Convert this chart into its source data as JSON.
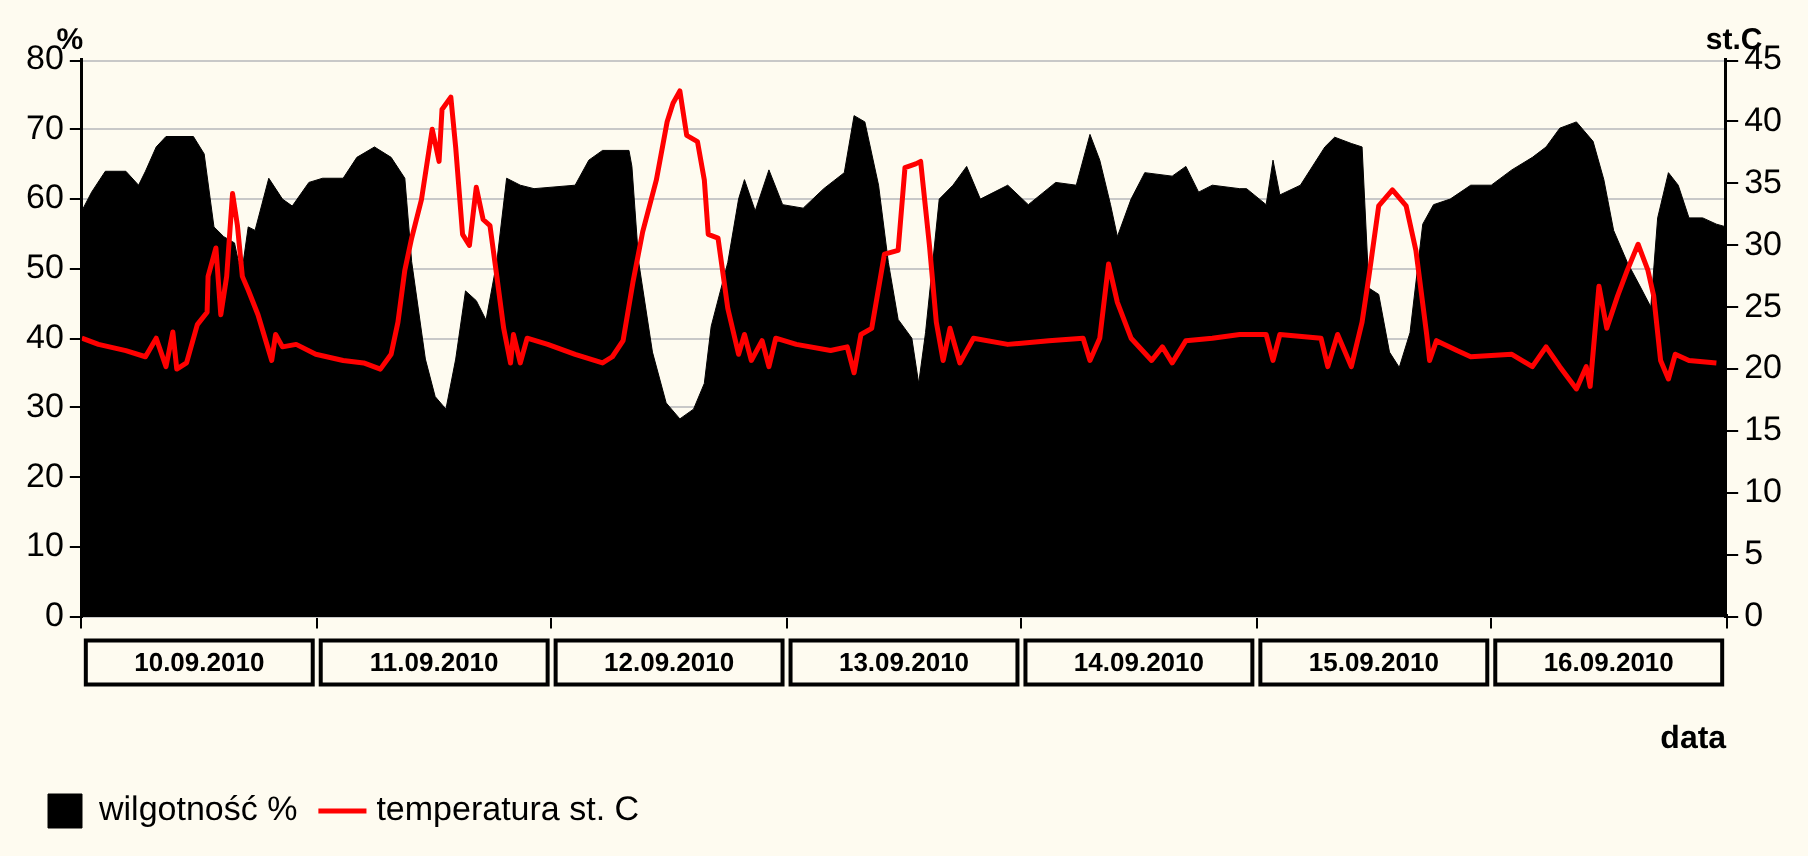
{
  "chart_data": {
    "type": "area",
    "xlabel": "data",
    "ylabel": "%",
    "y2label": "st.C",
    "xlim": [
      "2010-09-10",
      "2010-09-17"
    ],
    "xticks": [
      {
        "value": "2010-09-10",
        "label": null
      },
      {
        "value": "2010-09-10T12:00",
        "label": "10.09.2010"
      },
      {
        "value": "2010-09-11",
        "label": null
      },
      {
        "value": "2010-09-11T12:00",
        "label": "11.09.2010"
      },
      {
        "value": "2010-09-12",
        "label": null
      },
      {
        "value": "2010-09-12T12:00",
        "label": "12.09.2010"
      },
      {
        "value": "2010-09-13",
        "label": null
      },
      {
        "value": "2010-09-13T12:00",
        "label": "13.09.2010"
      },
      {
        "value": "2010-09-14",
        "label": null
      },
      {
        "value": "2010-09-14T12:00",
        "label": "14.09.2010"
      },
      {
        "value": "2010-09-15",
        "label": null
      },
      {
        "value": "2010-09-15T12:00",
        "label": "15.09.2010"
      },
      {
        "value": "2010-09-16",
        "label": null
      },
      {
        "value": "2010-09-16T12:00",
        "label": "16.09.2010"
      },
      {
        "value": "2010-09-17",
        "label": null
      }
    ],
    "ylim": [
      0,
      80
    ],
    "yticks": [
      0,
      10,
      20,
      30,
      40,
      50,
      60,
      70,
      80
    ],
    "y2lim": [
      0,
      45
    ],
    "y2ticks": [
      0,
      5,
      10,
      15,
      20,
      25,
      30,
      35,
      40,
      45
    ],
    "grid": "y",
    "legend": "bottom left",
    "series": [
      {
        "name": "wilgotność %",
        "color": "#000000",
        "x": [
          "2010-09-10T00:00",
          "2010-09-10T01:00",
          "2010-09-10T02:24",
          "2010-09-10T04:30",
          "2010-09-10T05:48",
          "2010-09-10T06:30",
          "2010-09-10T07:36",
          "2010-09-10T08:36",
          "2010-09-10T11:24",
          "2010-09-10T12:30",
          "2010-09-10T13:30",
          "2010-09-10T14:30",
          "2010-09-10T15:36",
          "2010-09-10T16:18",
          "2010-09-10T17:00",
          "2010-09-10T17:42",
          "2010-09-10T19:06",
          "2010-09-10T20:30",
          "2010-09-10T21:30",
          "2010-09-10T23:12",
          "2010-09-11T00:36",
          "2010-09-11T02:42",
          "2010-09-11T04:06",
          "2010-09-11T05:54",
          "2010-09-11T07:36",
          "2010-09-11T09:00",
          "2010-09-11T09:42",
          "2010-09-11T11:06",
          "2010-09-11T12:06",
          "2010-09-11T13:12",
          "2010-09-11T14:12",
          "2010-09-11T15:12",
          "2010-09-11T16:18",
          "2010-09-11T17:18",
          "2010-09-11T18:24",
          "2010-09-11T19:24",
          "2010-09-11T20:48",
          "2010-09-11T22:12",
          "2010-09-12T02:24",
          "2010-09-12T03:48",
          "2010-09-12T05:12",
          "2010-09-12T07:54",
          "2010-09-12T08:12",
          "2010-09-12T08:54",
          "2010-09-12T10:18",
          "2010-09-12T11:42",
          "2010-09-12T13:06",
          "2010-09-12T14:30",
          "2010-09-12T15:36",
          "2010-09-12T16:18",
          "2010-09-12T18:00",
          "2010-09-12T19:06",
          "2010-09-12T19:42",
          "2010-09-12T20:48",
          "2010-09-12T22:12",
          "2010-09-12T23:36",
          "2010-09-13T01:42",
          "2010-09-13T03:48",
          "2010-09-13T05:54",
          "2010-09-13T06:54",
          "2010-09-13T08:00",
          "2010-09-13T09:24",
          "2010-09-13T10:24",
          "2010-09-13T11:24",
          "2010-09-13T12:48",
          "2010-09-13T13:30",
          "2010-09-13T14:12",
          "2010-09-13T15:36",
          "2010-09-13T17:00",
          "2010-09-13T18:24",
          "2010-09-13T19:48",
          "2010-09-13T22:36",
          "2010-09-14T00:42",
          "2010-09-14T03:30",
          "2010-09-14T05:36",
          "2010-09-14T07:00",
          "2010-09-14T08:00",
          "2010-09-14T09:06",
          "2010-09-14T09:48",
          "2010-09-14T11:12",
          "2010-09-14T12:36",
          "2010-09-14T15:24",
          "2010-09-14T16:48",
          "2010-09-14T18:06",
          "2010-09-14T19:30",
          "2010-09-14T22:18",
          "2010-09-14T23:00",
          "2010-09-15T01:00",
          "2010-09-15T01:42",
          "2010-09-15T02:24",
          "2010-09-15T04:30",
          "2010-09-15T07:00",
          "2010-09-15T08:00",
          "2010-09-15T09:42",
          "2010-09-15T10:48",
          "2010-09-15T11:30",
          "2010-09-15T12:30",
          "2010-09-15T13:36",
          "2010-09-15T14:36",
          "2010-09-15T15:42",
          "2010-09-15T17:00",
          "2010-09-15T18:06",
          "2010-09-15T19:48",
          "2010-09-15T21:54",
          "2010-09-16T00:00",
          "2010-09-16T02:06",
          "2010-09-16T04:12",
          "2010-09-16T05:36",
          "2010-09-16T07:00",
          "2010-09-16T08:42",
          "2010-09-16T10:24",
          "2010-09-16T11:30",
          "2010-09-16T12:30",
          "2010-09-16T13:54",
          "2010-09-16T15:18",
          "2010-09-16T16:18",
          "2010-09-16T17:00",
          "2010-09-16T18:06",
          "2010-09-16T19:06",
          "2010-09-16T20:12",
          "2010-09-16T21:36",
          "2010-09-16T23:00",
          "2010-09-17T00:00"
        ],
        "values": [
          58.3,
          61,
          64,
          64,
          62,
          64,
          67.5,
          69,
          69,
          66.5,
          56,
          54.6,
          53.7,
          49,
          56,
          55.5,
          63,
          60,
          59,
          62.4,
          63,
          63,
          66,
          67.5,
          66,
          63,
          51,
          37,
          31.6,
          29.8,
          37,
          46.8,
          45.4,
          42.6,
          51,
          63,
          62,
          61.5,
          62,
          65.6,
          67,
          67,
          64.7,
          50.9,
          38,
          30.7,
          28.4,
          29.8,
          33.5,
          41.7,
          50.9,
          60,
          62.8,
          58.3,
          64.2,
          59.2,
          58.7,
          61.5,
          63.8,
          72,
          71.1,
          62,
          50.9,
          42.7,
          40,
          33.5,
          40.8,
          60,
          62,
          64.7,
          60,
          62,
          59.2,
          62.4,
          62,
          69.3,
          65.6,
          59.2,
          54.6,
          60,
          63.8,
          63.3,
          64.7,
          61,
          62,
          61.5,
          61.5,
          59.2,
          65.6,
          60.6,
          62,
          67.5,
          68.9,
          68,
          67.5,
          47.2,
          46.3,
          38,
          35.8,
          40.8,
          56.4,
          59.2,
          60,
          62,
          62,
          64.2,
          66,
          67.5,
          70.2,
          71.1,
          68.3,
          62.8,
          55.5,
          50.9,
          47.2,
          44.5,
          57.3,
          63.8,
          62,
          57.3,
          57.3,
          56.4,
          56
        ]
      },
      {
        "name": "temperatura st. C",
        "type": "line",
        "color": "#ff0000",
        "axis": "y2",
        "x": [
          "2010-09-10T00:00",
          "2010-09-10T01:42",
          "2010-09-10T04:30",
          "2010-09-10T06:30",
          "2010-09-10T07:36",
          "2010-09-10T08:36",
          "2010-09-10T09:18",
          "2010-09-10T09:42",
          "2010-09-10T10:42",
          "2010-09-10T11:48",
          "2010-09-10T12:48",
          "2010-09-10T12:54",
          "2010-09-10T13:42",
          "2010-09-10T14:12",
          "2010-09-10T14:48",
          "2010-09-10T15:24",
          "2010-09-10T15:54",
          "2010-09-10T16:24",
          "2010-09-10T17:00",
          "2010-09-10T18:00",
          "2010-09-10T19:24",
          "2010-09-10T19:48",
          "2010-09-10T20:30",
          "2010-09-10T21:54",
          "2010-09-10T23:54",
          "2010-09-11T02:42",
          "2010-09-11T04:48",
          "2010-09-11T06:30",
          "2010-09-11T07:36",
          "2010-09-11T08:18",
          "2010-09-11T09:00",
          "2010-09-11T09:42",
          "2010-09-11T10:42",
          "2010-09-11T11:48",
          "2010-09-11T12:30",
          "2010-09-11T12:48",
          "2010-09-11T13:42",
          "2010-09-11T14:12",
          "2010-09-11T14:54",
          "2010-09-11T15:36",
          "2010-09-11T16:18",
          "2010-09-11T17:00",
          "2010-09-11T17:42",
          "2010-09-11T18:24",
          "2010-09-11T19:06",
          "2010-09-11T19:48",
          "2010-09-11T20:06",
          "2010-09-11T20:48",
          "2010-09-11T21:30",
          "2010-09-11T23:36",
          "2010-09-12T02:24",
          "2010-09-12T05:12",
          "2010-09-12T06:12",
          "2010-09-12T07:18",
          "2010-09-12T08:18",
          "2010-09-12T09:18",
          "2010-09-12T10:42",
          "2010-09-12T11:48",
          "2010-09-12T12:24",
          "2010-09-12T13:06",
          "2010-09-12T13:48",
          "2010-09-12T14:54",
          "2010-09-12T15:36",
          "2010-09-12T16:00",
          "2010-09-12T17:00",
          "2010-09-12T18:00",
          "2010-09-12T19:06",
          "2010-09-12T19:42",
          "2010-09-12T20:24",
          "2010-09-12T21:30",
          "2010-09-12T22:12",
          "2010-09-12T22:54",
          "2010-09-13T01:00",
          "2010-09-13T04:30",
          "2010-09-13T06:12",
          "2010-09-13T06:54",
          "2010-09-13T07:36",
          "2010-09-13T08:42",
          "2010-09-13T10:00",
          "2010-09-13T11:24",
          "2010-09-13T12:06",
          "2010-09-13T13:12",
          "2010-09-13T13:42",
          "2010-09-13T14:36",
          "2010-09-13T15:18",
          "2010-09-13T16:00",
          "2010-09-13T16:42",
          "2010-09-13T17:42",
          "2010-09-13T19:06",
          "2010-09-13T22:36",
          "2010-09-14T02:48",
          "2010-09-14T06:18",
          "2010-09-14T07:00",
          "2010-09-14T08:00",
          "2010-09-14T08:54",
          "2010-09-14T09:48",
          "2010-09-14T11:12",
          "2010-09-14T13:18",
          "2010-09-14T14:24",
          "2010-09-14T15:24",
          "2010-09-14T16:48",
          "2010-09-14T19:30",
          "2010-09-14T22:18",
          "2010-09-15T01:00",
          "2010-09-15T01:42",
          "2010-09-15T02:24",
          "2010-09-15T06:36",
          "2010-09-15T07:18",
          "2010-09-15T08:18",
          "2010-09-15T09:42",
          "2010-09-15T10:48",
          "2010-09-15T11:30",
          "2010-09-15T12:30",
          "2010-09-15T13:54",
          "2010-09-15T15:18",
          "2010-09-15T16:18",
          "2010-09-15T17:24",
          "2010-09-15T17:42",
          "2010-09-15T18:24",
          "2010-09-15T20:30",
          "2010-09-15T21:54",
          "2010-09-16T02:06",
          "2010-09-16T04:12",
          "2010-09-16T05:36",
          "2010-09-16T07:00",
          "2010-09-16T08:42",
          "2010-09-16T09:42",
          "2010-09-16T10:06",
          "2010-09-16T11:00",
          "2010-09-16T11:48",
          "2010-09-16T12:54",
          "2010-09-16T13:54",
          "2010-09-16T15:00",
          "2010-09-16T16:00",
          "2010-09-16T16:36",
          "2010-09-16T17:18",
          "2010-09-16T18:06",
          "2010-09-16T18:48",
          "2010-09-16T20:12",
          "2010-09-16T23:00"
        ],
        "values": [
          22.5,
          22,
          21.5,
          21,
          22.5,
          20.2,
          23,
          20,
          20.5,
          23.6,
          24.6,
          27.5,
          29.8,
          24.4,
          27.5,
          34.2,
          31.6,
          27.5,
          26.4,
          24.4,
          20.7,
          22.8,
          21.8,
          22,
          21.2,
          20.7,
          20.5,
          20,
          21.2,
          23.8,
          28,
          30.6,
          33.7,
          39.4,
          36.8,
          41,
          42,
          37.9,
          30.9,
          30,
          34.7,
          32.1,
          31.6,
          27.5,
          23.3,
          20.5,
          22.8,
          20.5,
          22.5,
          22,
          21.2,
          20.5,
          21,
          22.3,
          27,
          31.1,
          35.3,
          40,
          41.5,
          42.5,
          38.9,
          38.4,
          35.3,
          30.9,
          30.6,
          24.9,
          21.2,
          22.8,
          20.7,
          22.3,
          20.2,
          22.5,
          22,
          21.5,
          21.8,
          19.7,
          22.8,
          23.3,
          29.3,
          29.6,
          36.3,
          36.6,
          36.8,
          30,
          23.8,
          20.7,
          23.3,
          20.5,
          22.5,
          22,
          22.3,
          22.5,
          20.7,
          22.5,
          28.5,
          25.4,
          22.5,
          20.7,
          21.8,
          20.5,
          22.3,
          22.5,
          22.8,
          22.8,
          20.7,
          22.8,
          22.5,
          20.2,
          22.8,
          20.2,
          23.8,
          27.5,
          33.2,
          34.5,
          33.2,
          29.6,
          22.8,
          20.7,
          22.3,
          21.5,
          21,
          21.2,
          20.2,
          21.8,
          20.2,
          18.4,
          20.2,
          18.6,
          26.7,
          23.3,
          25.9,
          28,
          30.1,
          28,
          25.9,
          20.7,
          19.2,
          21.2,
          20.7,
          20.5
        ]
      }
    ]
  }
}
